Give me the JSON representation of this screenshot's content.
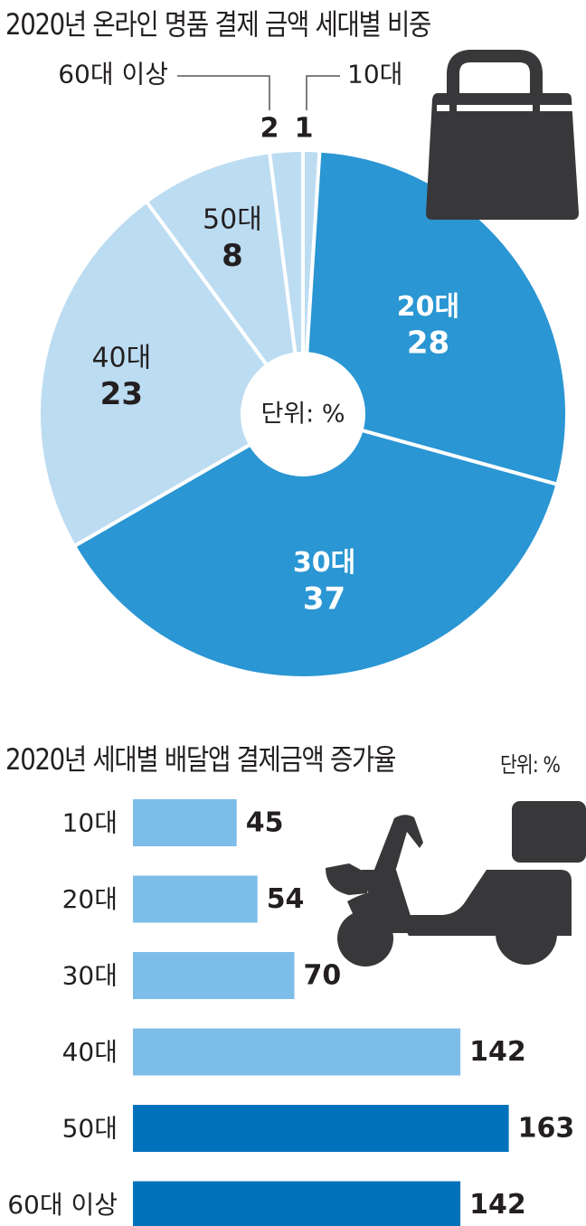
{
  "chart_data": [
    {
      "type": "pie",
      "title": "2020년 온라인 명품 결제 금액 세대별 비중",
      "unit_label": "단위: %",
      "categories": [
        "10대",
        "20대",
        "30대",
        "40대",
        "50대",
        "60대 이상"
      ],
      "values": [
        1,
        28,
        37,
        23,
        8,
        2
      ],
      "colors": [
        "#bcdcf2",
        "#2a96d3",
        "#2a96d3",
        "#bcdcf2",
        "#bcdcf2",
        "#bcdcf2"
      ]
    },
    {
      "type": "bar",
      "orientation": "horizontal",
      "title": "2020년 세대별 배달앱 결제금액 증가율",
      "unit_label": "단위: %",
      "categories": [
        "10대",
        "20대",
        "30대",
        "40대",
        "50대",
        "60대 이상"
      ],
      "values": [
        45,
        54,
        70,
        142,
        163,
        142
      ],
      "colors": [
        "#7dbde9",
        "#7dbde9",
        "#7dbde9",
        "#7dbde9",
        "#0072bb",
        "#0072bb"
      ]
    }
  ],
  "icons": {
    "pie_chart": "shopping-bag-icon",
    "bar_chart": "delivery-scooter-icon"
  },
  "colors": {
    "icon": "#38383a",
    "text": "#231f20",
    "leader_line": "#555555"
  }
}
